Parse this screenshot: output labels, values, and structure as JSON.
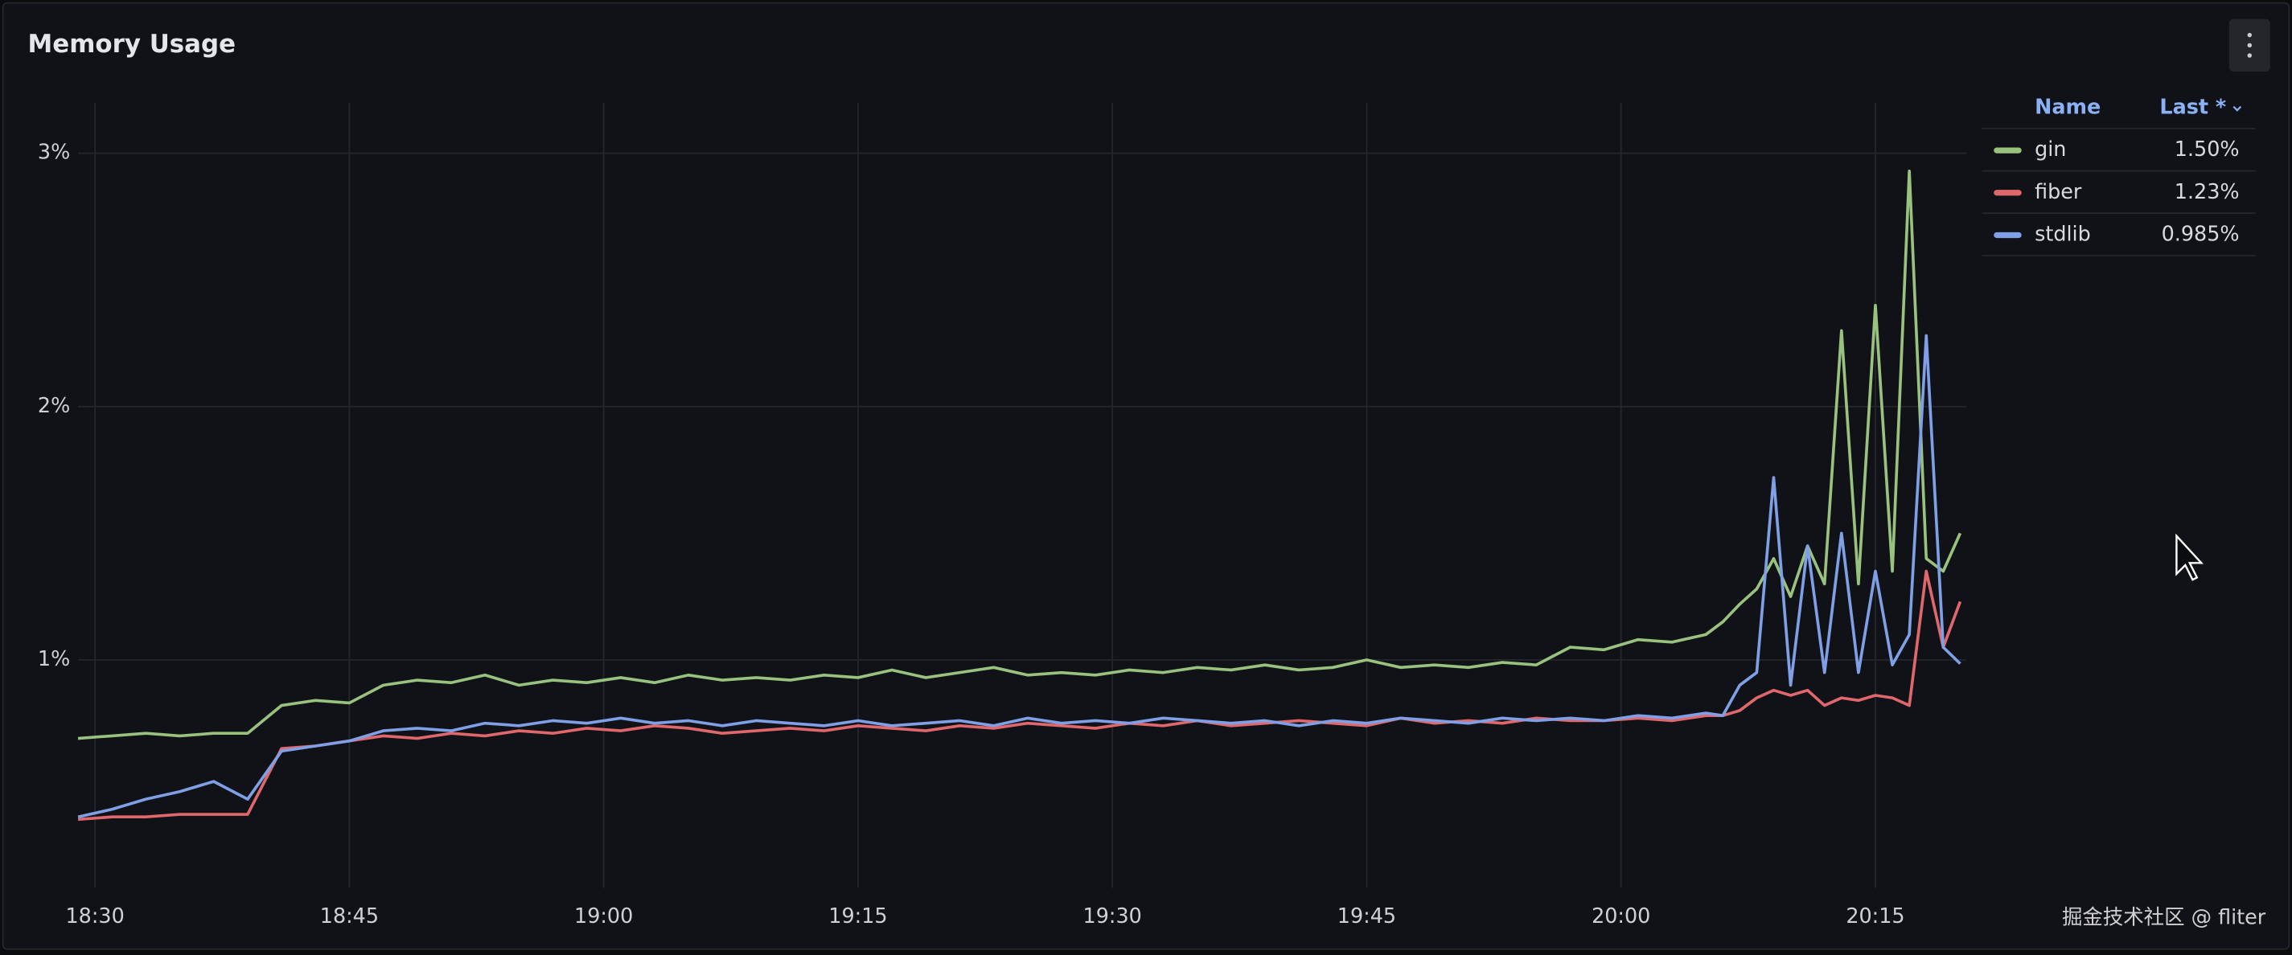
{
  "chart_data": {
    "type": "line",
    "title": "Memory Usage",
    "x": [
      "18:29",
      "18:31",
      "18:33",
      "18:35",
      "18:37",
      "18:39",
      "18:41",
      "18:43",
      "18:45",
      "18:47",
      "18:49",
      "18:51",
      "18:53",
      "18:55",
      "18:57",
      "18:59",
      "19:01",
      "19:03",
      "19:05",
      "19:07",
      "19:09",
      "19:11",
      "19:13",
      "19:15",
      "19:17",
      "19:19",
      "19:21",
      "19:23",
      "19:25",
      "19:27",
      "19:29",
      "19:31",
      "19:33",
      "19:35",
      "19:37",
      "19:39",
      "19:41",
      "19:43",
      "19:45",
      "19:47",
      "19:49",
      "19:51",
      "19:53",
      "19:55",
      "19:57",
      "19:59",
      "20:01",
      "20:03",
      "20:05",
      "20:06",
      "20:07",
      "20:08",
      "20:09",
      "20:10",
      "20:11",
      "20:12",
      "20:13",
      "20:14",
      "20:15",
      "20:16",
      "20:17",
      "20:18",
      "20:19",
      "20:20"
    ],
    "xlim": [
      "18:29",
      "20:20"
    ],
    "xticks": [
      "18:30",
      "18:45",
      "19:00",
      "19:15",
      "19:30",
      "19:45",
      "20:00",
      "20:15"
    ],
    "ylim": [
      0.1,
      3.2
    ],
    "yticks": [
      {
        "value": 1,
        "label": "1%"
      },
      {
        "value": 2,
        "label": "2%"
      },
      {
        "value": 3,
        "label": "3%"
      }
    ],
    "grid": true,
    "legend_columns": [
      "Name",
      "Last *"
    ],
    "series": [
      {
        "name": "gin",
        "color": "#9ac27f",
        "last": "1.50%",
        "values": [
          0.69,
          0.7,
          0.71,
          0.7,
          0.71,
          0.71,
          0.82,
          0.84,
          0.83,
          0.9,
          0.92,
          0.91,
          0.94,
          0.9,
          0.92,
          0.91,
          0.93,
          0.91,
          0.94,
          0.92,
          0.93,
          0.92,
          0.94,
          0.93,
          0.96,
          0.93,
          0.95,
          0.97,
          0.94,
          0.95,
          0.94,
          0.96,
          0.95,
          0.97,
          0.96,
          0.98,
          0.96,
          0.97,
          1.0,
          0.97,
          0.98,
          0.97,
          0.99,
          0.98,
          1.05,
          1.04,
          1.08,
          1.07,
          1.1,
          1.15,
          1.22,
          1.28,
          1.4,
          1.25,
          1.45,
          1.3,
          2.3,
          1.3,
          2.4,
          1.35,
          2.93,
          1.4,
          1.35,
          1.5
        ]
      },
      {
        "name": "fiber",
        "color": "#e0686c",
        "last": "1.23%",
        "values": [
          0.37,
          0.38,
          0.38,
          0.39,
          0.39,
          0.39,
          0.65,
          0.66,
          0.68,
          0.7,
          0.69,
          0.71,
          0.7,
          0.72,
          0.71,
          0.73,
          0.72,
          0.74,
          0.73,
          0.71,
          0.72,
          0.73,
          0.72,
          0.74,
          0.73,
          0.72,
          0.74,
          0.73,
          0.75,
          0.74,
          0.73,
          0.75,
          0.74,
          0.76,
          0.74,
          0.75,
          0.76,
          0.75,
          0.74,
          0.77,
          0.75,
          0.76,
          0.75,
          0.77,
          0.76,
          0.76,
          0.77,
          0.76,
          0.78,
          0.78,
          0.8,
          0.85,
          0.88,
          0.86,
          0.88,
          0.82,
          0.85,
          0.84,
          0.86,
          0.85,
          0.82,
          1.35,
          1.05,
          1.23
        ]
      },
      {
        "name": "stdlib",
        "color": "#7f9fe6",
        "last": "0.985%",
        "values": [
          0.38,
          0.41,
          0.45,
          0.48,
          0.52,
          0.45,
          0.64,
          0.66,
          0.68,
          0.72,
          0.73,
          0.72,
          0.75,
          0.74,
          0.76,
          0.75,
          0.77,
          0.75,
          0.76,
          0.74,
          0.76,
          0.75,
          0.74,
          0.76,
          0.74,
          0.75,
          0.76,
          0.74,
          0.77,
          0.75,
          0.76,
          0.75,
          0.77,
          0.76,
          0.75,
          0.76,
          0.74,
          0.76,
          0.75,
          0.77,
          0.76,
          0.75,
          0.77,
          0.76,
          0.77,
          0.76,
          0.78,
          0.77,
          0.79,
          0.78,
          0.9,
          0.95,
          1.72,
          0.9,
          1.45,
          0.95,
          1.5,
          0.95,
          1.35,
          0.98,
          1.1,
          2.28,
          1.05,
          0.985
        ]
      }
    ]
  },
  "watermark": "掘金技术社区 @ fliter"
}
